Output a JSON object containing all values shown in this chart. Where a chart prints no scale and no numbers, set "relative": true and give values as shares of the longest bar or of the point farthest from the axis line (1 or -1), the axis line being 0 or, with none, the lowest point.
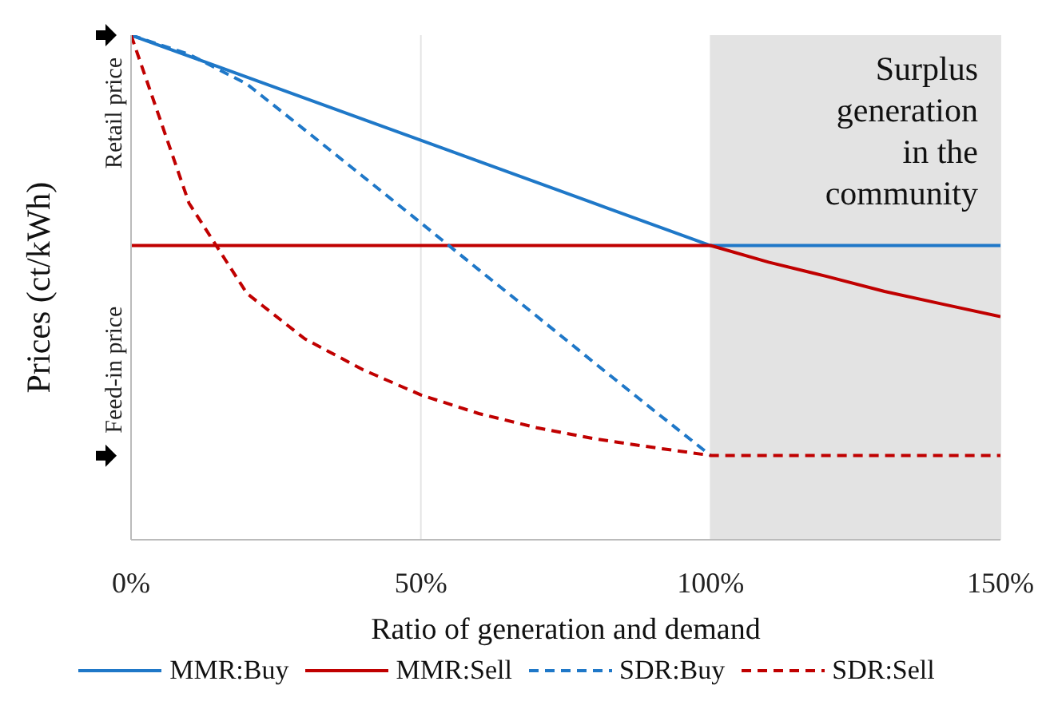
{
  "chart_data": {
    "type": "line",
    "xlabel": "Ratio of generation and demand",
    "ylabel": "Prices (ct/kWh)",
    "relative": true,
    "xlim": [
      0,
      150
    ],
    "xticks": [
      {
        "value": 0,
        "label": "0%"
      },
      {
        "value": 50,
        "label": "50%"
      },
      {
        "value": 100,
        "label": "100%"
      },
      {
        "value": 150,
        "label": "150%"
      }
    ],
    "grid": "x",
    "legend": "bottom",
    "marker": "none",
    "annotations": [
      "Retail price",
      "Feed-in price"
    ],
    "bands": [
      {
        "axis": "x",
        "from": 100,
        "to": 150,
        "label": "Surplus generation in the community",
        "color": "#e3e3e3"
      }
    ],
    "series": [
      {
        "name": "MMR:Buy",
        "color": "#1f78c8",
        "line_style": "solid",
        "x": [
          0,
          100,
          150
        ],
        "values": [
          1,
          0.583,
          0.583
        ]
      },
      {
        "name": "MMR:Sell",
        "color": "#c00000",
        "line_style": "solid",
        "x": [
          0,
          100,
          110,
          120,
          130,
          140,
          150
        ],
        "values": [
          0.583,
          0.583,
          0.55,
          0.522,
          0.492,
          0.467,
          0.442
        ]
      },
      {
        "name": "SDR:Buy",
        "color": "#1f78c8",
        "line_style": "dashed",
        "x": [
          0,
          10,
          20,
          30,
          40,
          50,
          60,
          70,
          80,
          90,
          100
        ],
        "values": [
          1,
          0.962,
          0.903,
          0.812,
          0.72,
          0.628,
          0.535,
          0.443,
          0.35,
          0.258,
          0.167
        ]
      },
      {
        "name": "SDR:Sell",
        "color": "#c00000",
        "line_style": "dashed",
        "x": [
          0,
          10,
          20,
          30,
          40,
          50,
          60,
          70,
          80,
          90,
          100,
          150
        ],
        "values": [
          1,
          0.667,
          0.488,
          0.398,
          0.337,
          0.287,
          0.25,
          0.222,
          0.2,
          0.183,
          0.167,
          0.167
        ]
      }
    ]
  }
}
